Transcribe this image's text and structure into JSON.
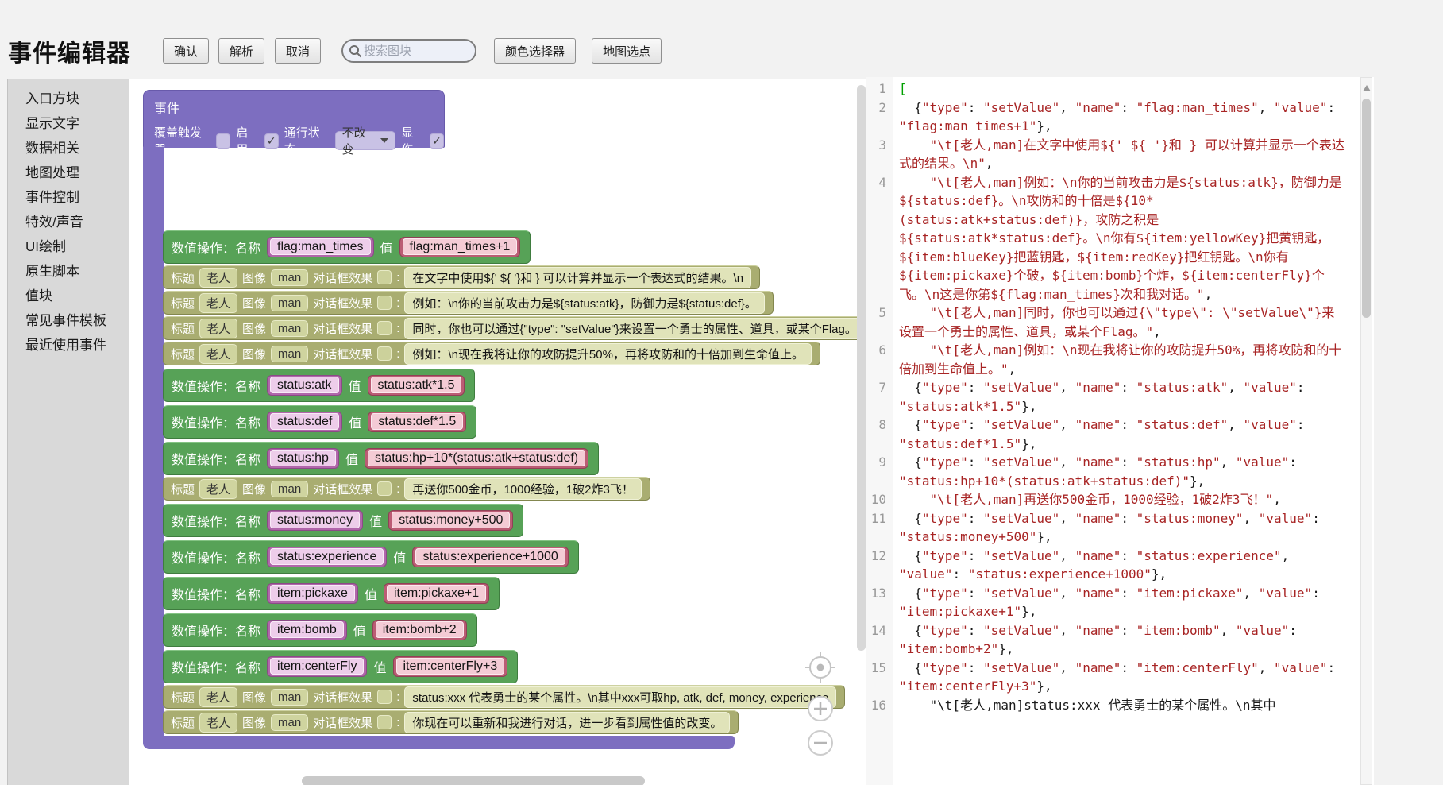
{
  "app": {
    "title": "事件编辑器"
  },
  "toolbar": {
    "confirm": "确认",
    "parse": "解析",
    "cancel": "取消",
    "search": {
      "placeholder": "搜索图块"
    },
    "color_picker": "颜色选择器",
    "map_pick": "地图选点"
  },
  "icons": {
    "search": "magnifier",
    "dropdown_arrow": "triangle-down",
    "check": "✓",
    "zoom_reset": "crosshair-target",
    "zoom_in": "plus-circle",
    "zoom_out": "minus-circle",
    "scroll_up": "triangle-up"
  },
  "colors": {
    "event_block": "#7d6ec0",
    "setvalue_block": "#57a257",
    "dialog_block": "#a9ad71",
    "name_chip": "#b166ab",
    "value_chip": "#bb5c74",
    "string_token": "#a82424",
    "matching_bracket": "#00a000"
  },
  "sidebar": {
    "items": [
      "入口方块",
      "显示文字",
      "数据相关",
      "地图处理",
      "事件控制",
      "特效/声音",
      "UI绘制",
      "原生脚本",
      "值块",
      "常见事件模板",
      "最近使用事件"
    ]
  },
  "workspace": {
    "event_block": {
      "title": "事件",
      "header_fields": [
        {
          "label": "覆盖触发器",
          "type": "checkbox",
          "checked": false
        },
        {
          "label": "启用",
          "type": "checkbox",
          "checked": true
        },
        {
          "label": "通行状态",
          "type": "dropdown",
          "value": "不改变"
        },
        {
          "label": "显伤",
          "type": "checkbox",
          "checked": true
        }
      ],
      "setvalue_labels": {
        "op": "数值操作：名称",
        "value": "值"
      },
      "dialog_labels": {
        "title": "标题",
        "image": "图像",
        "effect": "对话框效果",
        "colon": ":"
      },
      "rows": [
        {
          "kind": "setvalue",
          "name": "flag:man_times",
          "value": "flag:man_times+1"
        },
        {
          "kind": "dialog",
          "speaker": "老人",
          "image": "man",
          "checked": false,
          "text": "在文字中使用${' ${ '}和 } 可以计算并显示一个表达式的结果。\\n"
        },
        {
          "kind": "dialog",
          "speaker": "老人",
          "image": "man",
          "checked": false,
          "text": "例如：\\n你的当前攻击力是${status:atk}，防御力是${status:def}。"
        },
        {
          "kind": "dialog",
          "speaker": "老人",
          "image": "man",
          "checked": false,
          "text": "同时，你也可以通过{\"type\": \"setValue\"}来设置一个勇士的属性、道具，或某个Flag。"
        },
        {
          "kind": "dialog",
          "speaker": "老人",
          "image": "man",
          "checked": false,
          "text": "例如：\\n现在我将让你的攻防提升50%，再将攻防和的十倍加到生命值上。"
        },
        {
          "kind": "setvalue",
          "name": "status:atk",
          "value": "status:atk*1.5"
        },
        {
          "kind": "setvalue",
          "name": "status:def",
          "value": "status:def*1.5"
        },
        {
          "kind": "setvalue",
          "name": "status:hp",
          "value": "status:hp+10*(status:atk+status:def)"
        },
        {
          "kind": "dialog",
          "speaker": "老人",
          "image": "man",
          "checked": false,
          "text": "再送你500金币，1000经验，1破2炸3飞！"
        },
        {
          "kind": "setvalue",
          "name": "status:money",
          "value": "status:money+500"
        },
        {
          "kind": "setvalue",
          "name": "status:experience",
          "value": "status:experience+1000"
        },
        {
          "kind": "setvalue",
          "name": "item:pickaxe",
          "value": "item:pickaxe+1"
        },
        {
          "kind": "setvalue",
          "name": "item:bomb",
          "value": "item:bomb+2"
        },
        {
          "kind": "setvalue",
          "name": "item:centerFly",
          "value": "item:centerFly+3"
        },
        {
          "kind": "dialog",
          "speaker": "老人",
          "image": "man",
          "checked": false,
          "text": "status:xxx 代表勇士的某个属性。\\n其中xxx可取hp, atk, def, money, experience"
        },
        {
          "kind": "dialog",
          "speaker": "老人",
          "image": "man",
          "checked": false,
          "text": "你现在可以重新和我进行对话，进一步看到属性值的改变。"
        }
      ]
    }
  },
  "code_editor": {
    "lines": [
      "[",
      "  {\"type\": \"setValue\", \"name\": \"flag:man_times\", \"value\": \"flag:man_times+1\"},",
      "    \"\\t[老人,man]在文字中使用${' ${ '}和 } 可以计算并显示一个表达式的结果。\\n\",",
      "    \"\\t[老人,man]例如：\\n你的当前攻击力是${status:atk}，防御力是${status:def}。\\n攻防和的十倍是${10*(status:atk+status:def)}，攻防之积是${status:atk*status:def}。\\n你有${item:yellowKey}把黄钥匙，${item:blueKey}把蓝钥匙，${item:redKey}把红钥匙。\\n你有${item:pickaxe}个破，${item:bomb}个炸，${item:centerFly}个飞。\\n这是你第${flag:man_times}次和我对话。\",",
      "    \"\\t[老人,man]同时，你也可以通过{\\\"type\\\": \\\"setValue\\\"}来设置一个勇士的属性、道具，或某个Flag。\",",
      "    \"\\t[老人,man]例如：\\n现在我将让你的攻防提升50%，再将攻防和的十倍加到生命值上。\",",
      "  {\"type\": \"setValue\", \"name\": \"status:atk\", \"value\": \"status:atk*1.5\"},",
      "  {\"type\": \"setValue\", \"name\": \"status:def\", \"value\": \"status:def*1.5\"},",
      "  {\"type\": \"setValue\", \"name\": \"status:hp\", \"value\": \"status:hp+10*(status:atk+status:def)\"},",
      "    \"\\t[老人,man]再送你500金币，1000经验，1破2炸3飞！\",",
      "  {\"type\": \"setValue\", \"name\": \"status:money\", \"value\": \"status:money+500\"},",
      "  {\"type\": \"setValue\", \"name\": \"status:experience\", \"value\": \"status:experience+1000\"},",
      "  {\"type\": \"setValue\", \"name\": \"item:pickaxe\", \"value\": \"item:pickaxe+1\"},",
      "  {\"type\": \"setValue\", \"name\": \"item:bomb\", \"value\": \"item:bomb+2\"},",
      "  {\"type\": \"setValue\", \"name\": \"item:centerFly\", \"value\": \"item:centerFly+3\"},",
      "    \"\\t[老人,man]status:xxx 代表勇士的某个属性。\\n其中"
    ]
  }
}
